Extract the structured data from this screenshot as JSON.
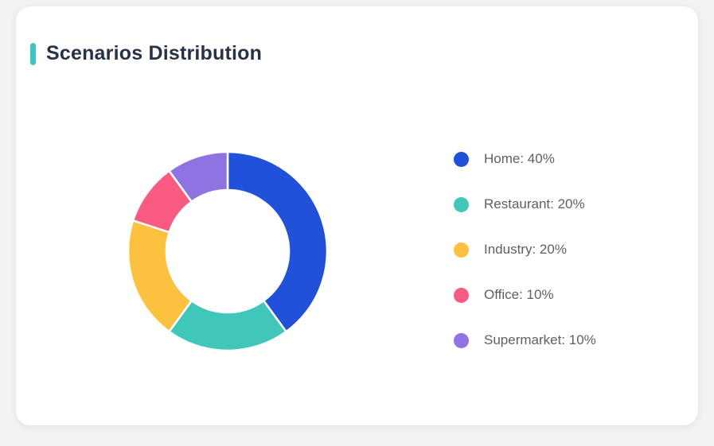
{
  "page": {
    "background_color": "#f1f2f4",
    "card_color": "#ffffff"
  },
  "card": {
    "title": "Scenarios Distribution",
    "accent_color": "#3dc6bf",
    "title_color": "#273246"
  },
  "chart_data": {
    "type": "pie",
    "title": "Scenarios Distribution",
    "donut": true,
    "start_angle_deg": -90,
    "direction": "clockwise",
    "outer_radius": 125,
    "inner_radius": 77,
    "segment_gap_color": "#ffffff",
    "legend_position": "right",
    "categories": [
      "Home",
      "Restaurant",
      "Industry",
      "Office",
      "Supermarket"
    ],
    "values": [
      40,
      20,
      20,
      10,
      10
    ],
    "unit": "%",
    "colors": [
      "#2151d8",
      "#41c6ba",
      "#fcc13e",
      "#f85a82",
      "#8f73e2"
    ],
    "legend_labels": [
      "Home: 40%",
      "Restaurant: 20%",
      "Industry: 20%",
      "Office: 10%",
      "Supermarket: 10%"
    ]
  }
}
